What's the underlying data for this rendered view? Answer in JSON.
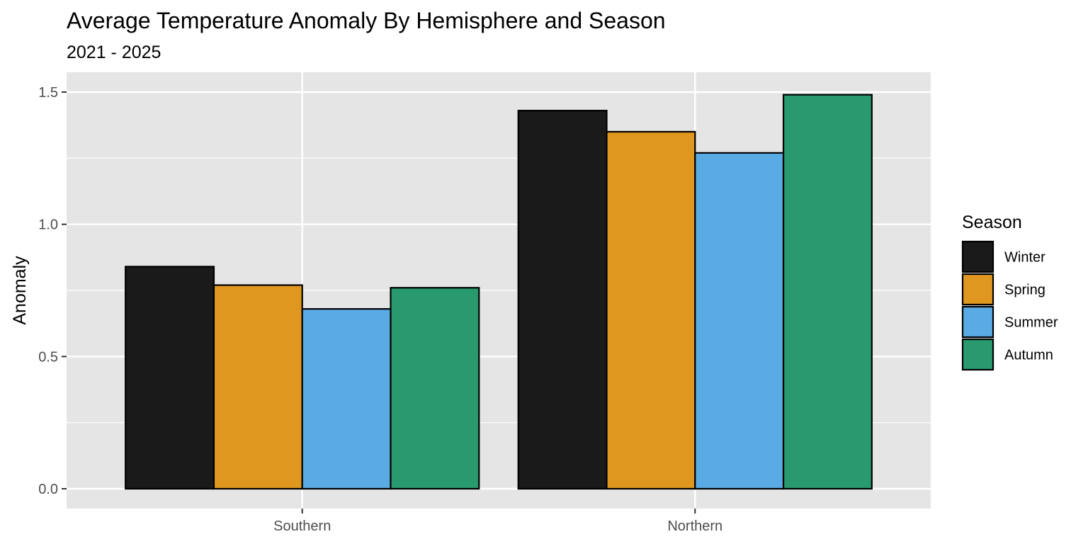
{
  "chart_data": {
    "type": "bar",
    "title": "Average Temperature Anomaly By Hemisphere and Season",
    "subtitle": "2021 - 2025",
    "xlabel": "",
    "ylabel": "Anomaly",
    "categories": [
      "Southern",
      "Northern"
    ],
    "series": [
      {
        "name": "Winter",
        "color": "#1a1a1a",
        "values": [
          0.84,
          1.43
        ]
      },
      {
        "name": "Spring",
        "color": "#df971f",
        "values": [
          0.77,
          1.35
        ]
      },
      {
        "name": "Summer",
        "color": "#5aabe4",
        "values": [
          0.68,
          1.27
        ]
      },
      {
        "name": "Autumn",
        "color": "#289a6e",
        "values": [
          0.76,
          1.49
        ]
      }
    ],
    "ylim": [
      -0.075,
      1.575
    ],
    "yticks": [
      0.0,
      0.5,
      1.0,
      1.5
    ],
    "ytick_labels": [
      "0.0",
      "0.5",
      "1.0",
      "1.5"
    ],
    "grid": true,
    "legend": {
      "title": "Season",
      "position": "right"
    }
  }
}
